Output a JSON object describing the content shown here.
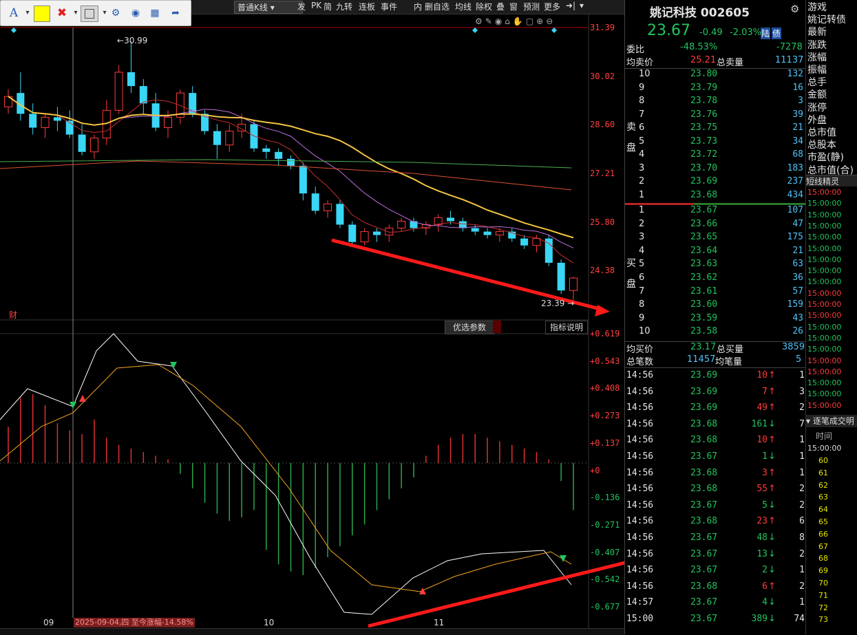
{
  "toolbar": {
    "kline_type": "普通K线",
    "items": [
      "发",
      "PK",
      "简",
      "九转",
      "连板",
      "事件",
      "内",
      "删自选",
      "均线",
      "除权",
      "叠",
      "窗",
      "预测",
      "更多"
    ]
  },
  "stock": {
    "name": "姚记科技",
    "code": "002605",
    "price": "23.67",
    "change": "-0.49",
    "change_pct": "-2.03%",
    "tag1": "陆",
    "tag2": "债"
  },
  "summary": {
    "weibi_label": "委比",
    "weibi_pct": "-48.53%",
    "weibi_val": "-7278",
    "avg_sell_label": "均卖价",
    "avg_sell": "25.21",
    "total_sell_label": "总卖量",
    "total_sell": "11137",
    "sell_side_label": "卖盘",
    "buy_side_label": "买盘",
    "avg_buy_label": "均买价",
    "avg_buy": "23.17",
    "total_buy_label": "总买量",
    "total_buy": "3859",
    "total_trades_label": "总笔数",
    "total_trades": "11457",
    "avg_vol_label": "均笔量",
    "avg_vol": "5"
  },
  "sell_orders": [
    {
      "lvl": "10",
      "price": "23.80",
      "vol": "132"
    },
    {
      "lvl": "9",
      "price": "23.79",
      "vol": "16"
    },
    {
      "lvl": "8",
      "price": "23.78",
      "vol": "3"
    },
    {
      "lvl": "7",
      "price": "23.76",
      "vol": "39"
    },
    {
      "lvl": "6",
      "price": "23.75",
      "vol": "21"
    },
    {
      "lvl": "5",
      "price": "23.73",
      "vol": "34"
    },
    {
      "lvl": "4",
      "price": "23.72",
      "vol": "68"
    },
    {
      "lvl": "3",
      "price": "23.70",
      "vol": "183"
    },
    {
      "lvl": "2",
      "price": "23.69",
      "vol": "237"
    },
    {
      "lvl": "1",
      "price": "23.68",
      "vol": "434"
    }
  ],
  "buy_orders": [
    {
      "lvl": "1",
      "price": "23.67",
      "vol": "107"
    },
    {
      "lvl": "2",
      "price": "23.66",
      "vol": "47"
    },
    {
      "lvl": "3",
      "price": "23.65",
      "vol": "175"
    },
    {
      "lvl": "4",
      "price": "23.64",
      "vol": "21"
    },
    {
      "lvl": "5",
      "price": "23.63",
      "vol": "63"
    },
    {
      "lvl": "6",
      "price": "23.62",
      "vol": "36"
    },
    {
      "lvl": "7",
      "price": "23.61",
      "vol": "57"
    },
    {
      "lvl": "8",
      "price": "23.60",
      "vol": "159"
    },
    {
      "lvl": "9",
      "price": "23.59",
      "vol": "43"
    },
    {
      "lvl": "10",
      "price": "23.58",
      "vol": "26"
    }
  ],
  "trades": [
    {
      "time": "14:56",
      "price": "23.69",
      "vol": "10",
      "dir": "up",
      "n": "1"
    },
    {
      "time": "14:56",
      "price": "23.69",
      "vol": "7",
      "dir": "up",
      "n": "3"
    },
    {
      "time": "14:56",
      "price": "23.69",
      "vol": "49",
      "dir": "up",
      "n": "2"
    },
    {
      "time": "14:56",
      "price": "23.68",
      "vol": "161",
      "dir": "down",
      "n": "7"
    },
    {
      "time": "14:56",
      "price": "23.68",
      "vol": "10",
      "dir": "up",
      "n": "1"
    },
    {
      "time": "14:56",
      "price": "23.67",
      "vol": "1",
      "dir": "down",
      "n": "1"
    },
    {
      "time": "14:56",
      "price": "23.68",
      "vol": "3",
      "dir": "up",
      "n": "1"
    },
    {
      "time": "14:56",
      "price": "23.68",
      "vol": "55",
      "dir": "up",
      "n": "2"
    },
    {
      "time": "14:56",
      "price": "23.67",
      "vol": "5",
      "dir": "down",
      "n": "2"
    },
    {
      "time": "14:56",
      "price": "23.68",
      "vol": "23",
      "dir": "up",
      "n": "6"
    },
    {
      "time": "14:56",
      "price": "23.67",
      "vol": "48",
      "dir": "down",
      "n": "8"
    },
    {
      "time": "14:56",
      "price": "23.67",
      "vol": "13",
      "dir": "down",
      "n": "2"
    },
    {
      "time": "14:56",
      "price": "23.67",
      "vol": "2",
      "dir": "down",
      "n": "1"
    },
    {
      "time": "14:56",
      "price": "23.68",
      "vol": "6",
      "dir": "up",
      "n": "2"
    },
    {
      "time": "14:57",
      "price": "23.67",
      "vol": "4",
      "dir": "down",
      "n": "1"
    },
    {
      "time": "15:00",
      "price": "23.67",
      "vol": "389",
      "dir": "down",
      "n": "74"
    }
  ],
  "far_panel": {
    "top_items": [
      "游戏",
      "姚记转债",
      "最新",
      "涨跌",
      "涨幅",
      "振幅",
      "总手",
      "金额",
      "涨停",
      "外盘",
      "总市值",
      "总股本",
      "市盈(静)",
      "总市值(合)"
    ],
    "sprite_title": "短线精灵",
    "sprite_times": [
      "15:00:00",
      "15:00:00",
      "15:00:00",
      "15:00:00",
      "15:00:00",
      "15:00:00",
      "15:00:00",
      "15:00:00",
      "15:00:00",
      "15:00:00",
      "15:00:00",
      "15:00:00",
      "15:00:00",
      "15:00:00",
      "15:00:00",
      "15:00:00",
      "15:00:00",
      "15:00:00",
      "15:00:00",
      "15:00:00"
    ],
    "tick_title": "逐笔成交明",
    "tick_col": "时间",
    "tick_first": "15:00:00",
    "tick_nums": [
      "60",
      "61",
      "62",
      "63",
      "64",
      "65",
      "66",
      "67",
      "68",
      "69",
      "70",
      "71",
      "72",
      "73"
    ]
  },
  "chart_data": {
    "type": "candlestick",
    "price_axis": [
      "31.39",
      "30.02",
      "28.60",
      "27.21",
      "25.80",
      "24.38"
    ],
    "high_label": "30.99",
    "low_label": "23.39",
    "macd_axis": [
      "+0.619",
      "+0.543",
      "+0.408",
      "+0.273",
      "+0.137",
      "+0",
      "-0.136",
      "-0.271",
      "-0.407",
      "-0.542",
      "-0.677"
    ],
    "x_labels": [
      "09",
      "10",
      "11"
    ],
    "cursor_info": "2025-09-04,四 至今涨幅-14.58%",
    "buttons": [
      "优选参数",
      "指标说明"
    ],
    "cai_label": "财",
    "candles": [
      [
        29.1,
        29.6,
        28.9,
        29.4
      ],
      [
        29.5,
        30.1,
        28.7,
        28.9
      ],
      [
        28.9,
        29.2,
        28.3,
        28.5
      ],
      [
        28.5,
        28.9,
        28.2,
        28.8
      ],
      [
        28.8,
        29.1,
        28.4,
        28.7
      ],
      [
        28.7,
        29.0,
        28.2,
        28.3
      ],
      [
        28.3,
        28.6,
        27.7,
        27.8
      ],
      [
        27.8,
        28.3,
        27.6,
        28.2
      ],
      [
        28.2,
        29.3,
        28.0,
        29.0
      ],
      [
        29.0,
        30.3,
        28.9,
        30.1
      ],
      [
        30.1,
        30.99,
        29.5,
        29.7
      ],
      [
        29.7,
        29.9,
        28.9,
        29.2
      ],
      [
        29.2,
        29.5,
        28.4,
        28.5
      ],
      [
        28.5,
        29.0,
        28.2,
        28.8
      ],
      [
        28.8,
        29.6,
        28.6,
        29.5
      ],
      [
        29.5,
        29.7,
        28.8,
        28.9
      ],
      [
        28.9,
        29.0,
        28.3,
        28.4
      ],
      [
        28.4,
        28.6,
        27.6,
        28.0
      ],
      [
        28.0,
        28.6,
        27.8,
        28.4
      ],
      [
        28.4,
        28.9,
        28.2,
        28.6
      ],
      [
        28.6,
        28.7,
        27.8,
        27.9
      ],
      [
        27.9,
        28.0,
        27.6,
        27.8
      ],
      [
        27.8,
        27.9,
        27.4,
        27.6
      ],
      [
        27.6,
        27.7,
        27.3,
        27.4
      ],
      [
        27.4,
        27.5,
        26.4,
        26.6
      ],
      [
        26.6,
        26.8,
        26.0,
        26.1
      ],
      [
        26.1,
        26.4,
        25.9,
        26.3
      ],
      [
        26.3,
        26.4,
        25.6,
        25.7
      ],
      [
        25.7,
        25.8,
        25.1,
        25.2
      ],
      [
        25.2,
        25.6,
        25.1,
        25.5
      ],
      [
        25.5,
        25.6,
        25.2,
        25.4
      ],
      [
        25.4,
        25.7,
        25.2,
        25.6
      ],
      [
        25.6,
        25.9,
        25.5,
        25.8
      ],
      [
        25.8,
        25.9,
        25.5,
        25.6
      ],
      [
        25.6,
        25.8,
        25.4,
        25.7
      ],
      [
        25.7,
        26.0,
        25.5,
        25.9
      ],
      [
        25.9,
        26.1,
        25.7,
        25.8
      ],
      [
        25.8,
        25.9,
        25.5,
        25.6
      ],
      [
        25.6,
        25.7,
        25.4,
        25.5
      ],
      [
        25.5,
        25.6,
        25.3,
        25.4
      ],
      [
        25.4,
        25.6,
        25.2,
        25.5
      ],
      [
        25.5,
        25.6,
        25.2,
        25.3
      ],
      [
        25.3,
        25.4,
        25.0,
        25.1
      ],
      [
        25.1,
        25.4,
        24.9,
        25.3
      ],
      [
        25.3,
        25.4,
        24.5,
        24.6
      ],
      [
        24.6,
        24.7,
        23.7,
        23.8
      ],
      [
        23.8,
        24.2,
        23.39,
        24.16
      ]
    ],
    "macd_hist": [
      0.2,
      0.36,
      0.38,
      0.32,
      0.22,
      0.18,
      0.16,
      0.24,
      0.14,
      0.1,
      0.08,
      0.06,
      0.04,
      0.02,
      -0.06,
      -0.14,
      -0.22,
      -0.28,
      -0.32,
      -0.3,
      -0.26,
      -0.48,
      -0.56,
      -0.6,
      -0.62,
      -0.58,
      -0.52,
      -0.46,
      -0.4,
      -0.34,
      -0.26,
      -0.2,
      -0.14,
      -0.08,
      0.04,
      0.1,
      0.14,
      0.16,
      0.16,
      0.14,
      0.12,
      0.1,
      0.08,
      0.06,
      0.02,
      -0.1,
      -0.26
    ]
  }
}
